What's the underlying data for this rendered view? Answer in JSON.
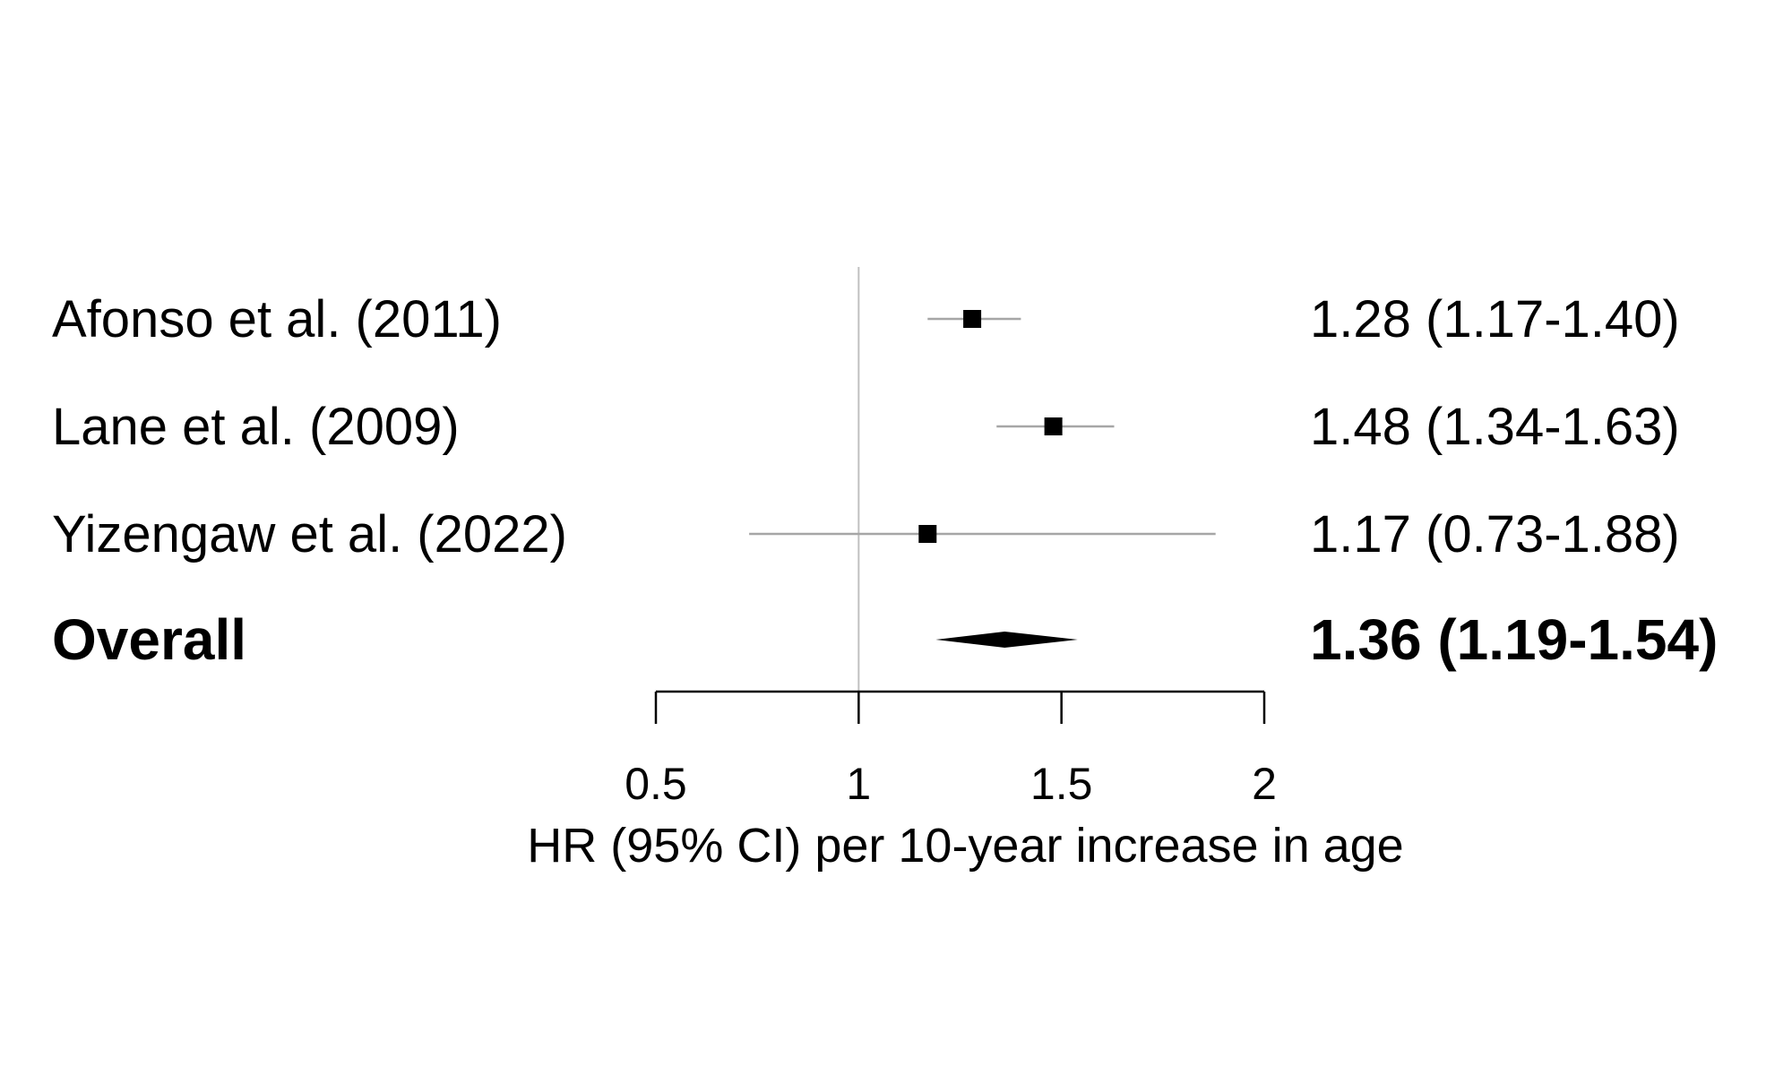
{
  "chart_data": {
    "type": "forest",
    "xlabel": "HR (95% CI) per 10-year increase in age",
    "xlim": [
      0.5,
      2
    ],
    "xticks": [
      0.5,
      1,
      1.5,
      2
    ],
    "xtick_labels": [
      "0.5",
      "1",
      "1.5",
      "2"
    ],
    "reference_line": 1,
    "grid": false,
    "studies": [
      {
        "label": "Afonso et al. (2011)",
        "estimate": 1.28,
        "lower": 1.17,
        "upper": 1.4,
        "estimate_text": "1.28 (1.17-1.40)"
      },
      {
        "label": "Lane et al. (2009)",
        "estimate": 1.48,
        "lower": 1.34,
        "upper": 1.63,
        "estimate_text": "1.48 (1.34-1.63)"
      },
      {
        "label": "Yizengaw et al. (2022)",
        "estimate": 1.17,
        "lower": 0.73,
        "upper": 1.88,
        "estimate_text": "1.17 (0.73-1.88)"
      }
    ],
    "overall": {
      "label": "Overall",
      "estimate": 1.36,
      "lower": 1.19,
      "upper": 1.54,
      "estimate_text": "1.36 (1.19-1.54)"
    },
    "colors": {
      "marker": "#000000",
      "ci_line": "#a6a6a6",
      "reference_line": "#c0c0c0",
      "axis": "#000000",
      "text": "#000000"
    }
  }
}
